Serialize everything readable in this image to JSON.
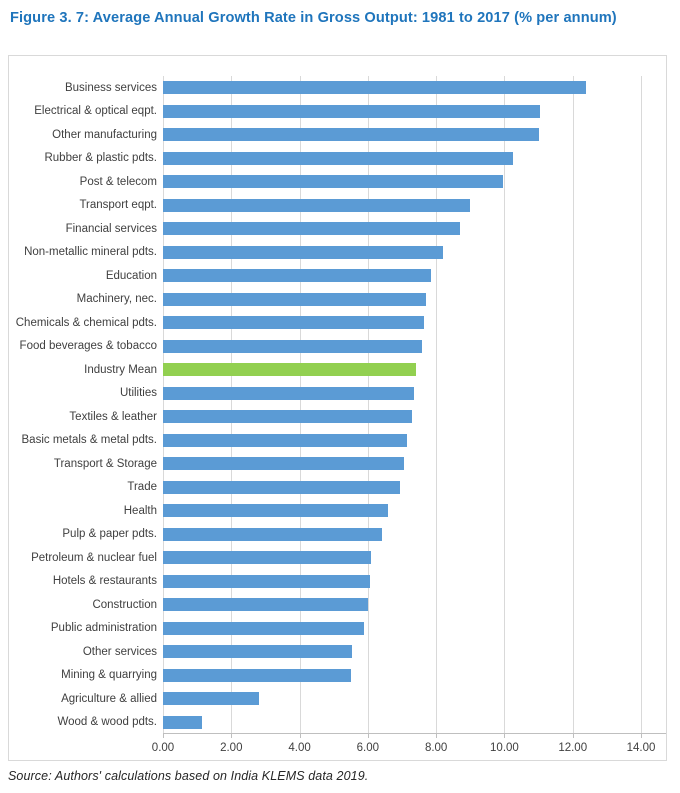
{
  "title": "Figure 3. 7: Average Annual Growth Rate in Gross Output: 1981 to 2017 (% per annum)",
  "source": "Source: Authors' calculations based on India KLEMS data 2019.",
  "colors": {
    "bar": "#5B9BD5",
    "highlight_bar": "#92D050",
    "title_text": "#1F75BC",
    "gridline": "#D9D9D9",
    "axis_text": "#404040",
    "frame_border": "#D9D9D9"
  },
  "chart_data": {
    "type": "bar",
    "orientation": "horizontal",
    "title": "Figure 3. 7: Average Annual Growth Rate in Gross Output: 1981 to 2017 (% per annum)",
    "xlabel": "",
    "ylabel": "",
    "xlim": [
      0,
      14
    ],
    "x_tick_labels": [
      "0.00",
      "2.00",
      "4.00",
      "6.00",
      "8.00",
      "10.00",
      "12.00",
      "14.00"
    ],
    "x_tick_values": [
      0,
      2,
      4,
      6,
      8,
      10,
      12,
      14
    ],
    "grid": true,
    "legend": "none",
    "highlight_category": "Industry Mean",
    "categories": [
      "Business services",
      "Electrical & optical eqpt.",
      "Other manufacturing",
      "Rubber & plastic pdts.",
      "Post & telecom",
      "Transport eqpt.",
      "Financial services",
      "Non-metallic mineral pdts.",
      "Education",
      "Machinery, nec.",
      "Chemicals & chemical pdts.",
      "Food beverages & tobacco",
      "Industry Mean",
      "Utilities",
      "Textiles & leather",
      "Basic metals & metal pdts.",
      "Transport & Storage",
      "Trade",
      "Health",
      "Pulp & paper pdts.",
      "Petroleum & nuclear fuel",
      "Hotels & restaurants",
      "Construction",
      "Public administration",
      "Other services",
      "Mining & quarrying",
      "Agriculture & allied",
      "Wood & wood pdts."
    ],
    "values": [
      12.4,
      11.05,
      11.0,
      10.25,
      9.95,
      9.0,
      8.7,
      8.2,
      7.85,
      7.7,
      7.65,
      7.6,
      7.4,
      7.35,
      7.3,
      7.15,
      7.05,
      6.95,
      6.6,
      6.4,
      6.1,
      6.05,
      6.0,
      5.9,
      5.55,
      5.5,
      2.8,
      1.15
    ]
  }
}
